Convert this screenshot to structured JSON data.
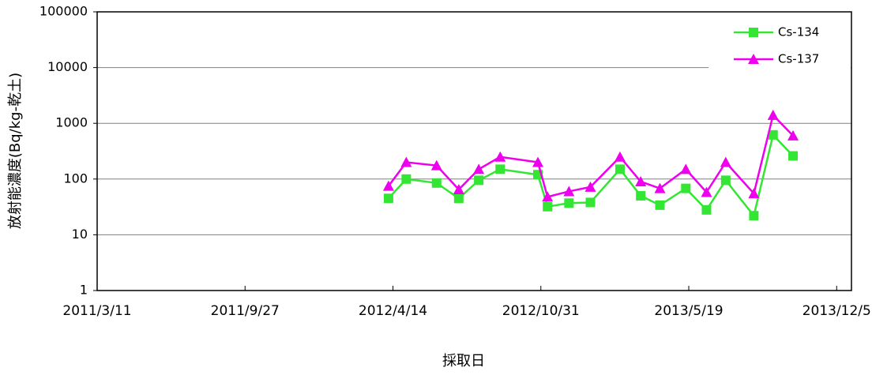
{
  "chart_data": {
    "type": "line",
    "x_label": "採取日",
    "y_label": "放射能濃度(Bq/kg-乾土)",
    "x": [
      "2012/4/8",
      "2012/5/2",
      "2012/6/12",
      "2012/7/12",
      "2012/8/8",
      "2012/9/6",
      "2012/10/27",
      "2012/11/9",
      "2012/12/8",
      "2013/1/6",
      "2013/2/15",
      "2013/3/15",
      "2013/4/10",
      "2013/5/15",
      "2013/6/12",
      "2013/7/8",
      "2013/8/15",
      "2013/9/10",
      "2013/10/7"
    ],
    "series": [
      {
        "name": "Cs-134",
        "color": "#33e633",
        "marker": "square",
        "values": [
          45,
          100,
          85,
          45,
          95,
          150,
          120,
          32,
          37,
          38,
          150,
          50,
          34,
          68,
          28,
          95,
          22,
          620,
          260
        ]
      },
      {
        "name": "Cs-137",
        "color": "#ee00ee",
        "marker": "triangle",
        "values": [
          75,
          200,
          175,
          65,
          150,
          250,
          200,
          48,
          60,
          72,
          250,
          90,
          68,
          150,
          58,
          200,
          55,
          1400,
          600
        ]
      }
    ],
    "xlim": [
      "2011/3/11",
      "2013/12/25"
    ],
    "xticks": [
      "2011/3/11",
      "2011/9/27",
      "2012/4/14",
      "2012/10/31",
      "2013/5/19",
      "2013/12/5"
    ],
    "ylim": [
      1,
      100000
    ],
    "yticks": [
      1,
      10,
      100,
      1000,
      10000,
      100000
    ],
    "ylog": true,
    "grid": true,
    "legend": "upper right"
  }
}
